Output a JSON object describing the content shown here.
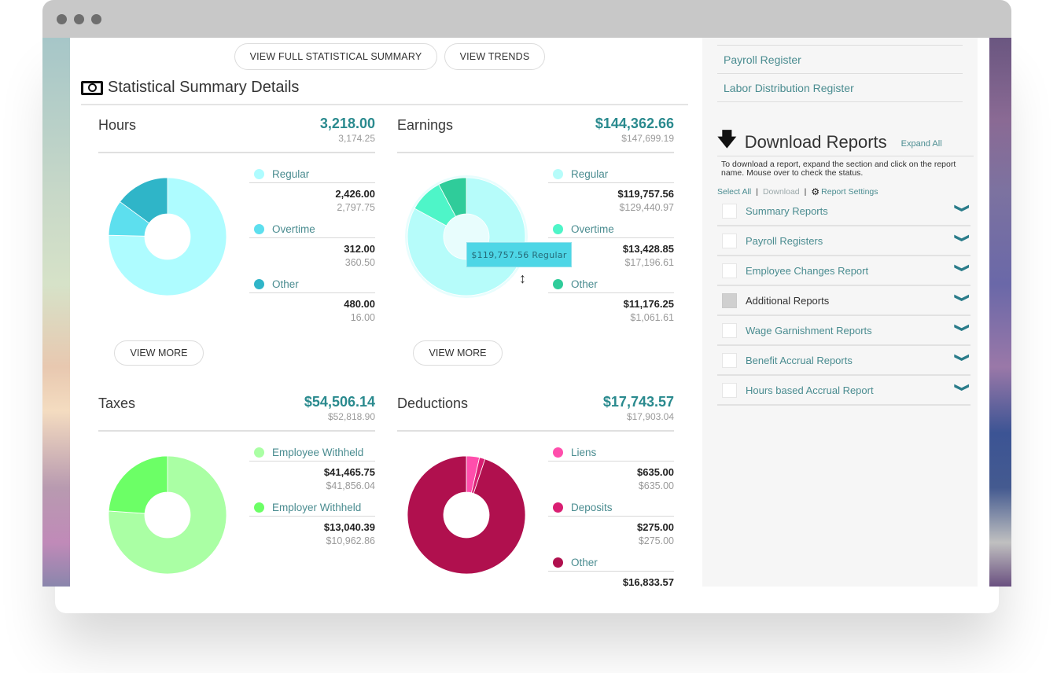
{
  "window": {
    "controls": [
      "close",
      "minimize",
      "maximize"
    ]
  },
  "header": {
    "buttons": {
      "full_summary": "VIEW FULL STATISTICAL SUMMARY",
      "trends": "VIEW TRENDS"
    },
    "section_title": "Statistical Summary Details",
    "section_icon": "money-icon"
  },
  "cards": {
    "hours": {
      "title": "Hours",
      "total": "3,218.00",
      "previous": "3,174.25",
      "items": [
        {
          "label": "Regular",
          "current": "2,426.00",
          "previous": "2,797.75",
          "color": "#aefcff"
        },
        {
          "label": "Overtime",
          "current": "312.00",
          "previous": "360.50",
          "color": "#5ddfee"
        },
        {
          "label": "Other",
          "current": "480.00",
          "previous": "16.00",
          "color": "#2fb5c8"
        }
      ],
      "view_more": "VIEW MORE"
    },
    "earnings": {
      "title": "Earnings",
      "total": "$144,362.66",
      "previous": "$147,699.19",
      "items": [
        {
          "label": "Regular",
          "current": "$119,757.56",
          "previous": "$129,440.97",
          "color": "#b6fcfa"
        },
        {
          "label": "Overtime",
          "current": "$13,428.85",
          "previous": "$17,196.61",
          "color": "#4ef5c8"
        },
        {
          "label": "Other",
          "current": "$11,176.25",
          "previous": "$1,061.61",
          "color": "#2fcc9a"
        }
      ],
      "view_more": "VIEW MORE",
      "tooltip": "$119,757.56 Regular"
    },
    "taxes": {
      "title": "Taxes",
      "total": "$54,506.14",
      "previous": "$52,818.90",
      "items": [
        {
          "label": "Employee Withheld",
          "current": "$41,465.75",
          "previous": "$41,856.04",
          "color": "#aaffa4"
        },
        {
          "label": "Employer Withheld",
          "current": "$13,040.39",
          "previous": "$10,962.86",
          "color": "#6cff66"
        }
      ]
    },
    "deductions": {
      "title": "Deductions",
      "total": "$17,743.57",
      "previous": "$17,903.04",
      "items": [
        {
          "label": "Liens",
          "current": "$635.00",
          "previous": "$635.00",
          "color": "#ff4eac"
        },
        {
          "label": "Deposits",
          "current": "$275.00",
          "previous": "$275.00",
          "color": "#d91e72"
        },
        {
          "label": "Other",
          "current": "$16,833.57",
          "previous": "",
          "color": "#b0104e"
        }
      ]
    }
  },
  "chart_data": [
    {
      "type": "pie",
      "title": "Hours",
      "categories": [
        "Regular",
        "Overtime",
        "Other"
      ],
      "values": [
        2426.0,
        312.0,
        480.0
      ],
      "colors": [
        "#aefcff",
        "#5ddfee",
        "#2fb5c8"
      ]
    },
    {
      "type": "pie",
      "title": "Earnings",
      "categories": [
        "Regular",
        "Overtime",
        "Other"
      ],
      "values": [
        119757.56,
        13428.85,
        11176.25
      ],
      "colors": [
        "#b6fcfa",
        "#4ef5c8",
        "#2fcc9a"
      ]
    },
    {
      "type": "pie",
      "title": "Taxes",
      "categories": [
        "Employee Withheld",
        "Employer Withheld"
      ],
      "values": [
        41465.75,
        13040.39
      ],
      "colors": [
        "#aaffa4",
        "#6cff66"
      ]
    },
    {
      "type": "pie",
      "title": "Deductions",
      "categories": [
        "Liens",
        "Deposits",
        "Other"
      ],
      "values": [
        635.0,
        275.0,
        16833.57
      ],
      "colors": [
        "#ff4eac",
        "#d91e72",
        "#b0104e"
      ]
    }
  ],
  "sidebar": {
    "links": [
      "Payroll Register",
      "Labor Distribution Register"
    ],
    "download": {
      "title": "Download Reports",
      "expand_all": "Expand All",
      "description": "To download a report, expand the section and click on the report name. Mouse over to check the status.",
      "select_all": "Select All",
      "download": "Download",
      "report_settings": "Report Settings",
      "reports": [
        {
          "label": "Summary Reports",
          "checked": false
        },
        {
          "label": "Payroll Registers",
          "checked": false
        },
        {
          "label": "Employee Changes Report",
          "checked": false
        },
        {
          "label": "Additional Reports",
          "checked": false,
          "disabled": true
        },
        {
          "label": "Wage Garnishment Reports",
          "checked": false
        },
        {
          "label": "Benefit Accrual Reports",
          "checked": false
        },
        {
          "label": "Hours based Accrual Report",
          "checked": false
        }
      ]
    }
  }
}
